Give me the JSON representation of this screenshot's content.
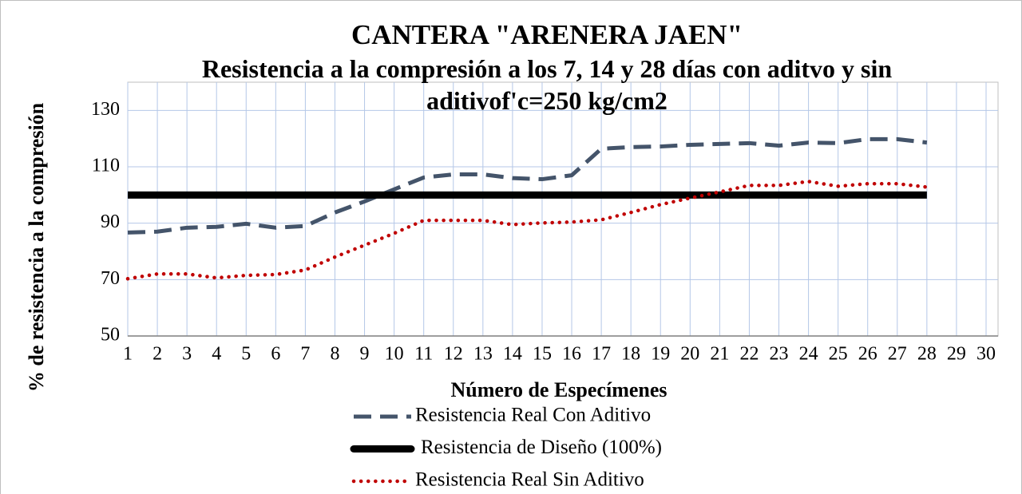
{
  "chart_data": {
    "type": "line",
    "title": "CANTERA  \"ARENERA JAEN\"",
    "subtitle": "Resistencia a la compresión a los 7, 14 y 28 días con aditvo y sin aditivof'c=250 kg/cm2",
    "x_label": "Número de Especímenes",
    "y_label": "% de resistencia a la compresión",
    "x": [
      1,
      2,
      3,
      4,
      5,
      6,
      7,
      8,
      9,
      10,
      11,
      12,
      13,
      14,
      15,
      16,
      17,
      18,
      19,
      20,
      21,
      22,
      23,
      24,
      25,
      26,
      27,
      28
    ],
    "xlim": [
      1,
      30
    ],
    "xticks": [
      1,
      2,
      3,
      4,
      5,
      6,
      7,
      8,
      9,
      10,
      11,
      12,
      13,
      14,
      15,
      16,
      17,
      18,
      19,
      20,
      21,
      22,
      23,
      24,
      25,
      26,
      27,
      28,
      29,
      30
    ],
    "ylim": [
      50,
      140
    ],
    "yticks": [
      50,
      70,
      90,
      110,
      130
    ],
    "grid": true,
    "series": [
      {
        "name": "Resistencia Real Con Aditivo",
        "color": "#44546a",
        "dash": "dashed",
        "values": [
          86.7,
          87,
          88.4,
          88.7,
          89.8,
          88.4,
          89,
          93.8,
          97.7,
          102,
          106.2,
          107.3,
          107.3,
          106,
          105.6,
          107,
          116.4,
          117,
          117.2,
          117.8,
          118.1,
          118.4,
          117.5,
          118.6,
          118.4,
          119.8,
          119.8,
          118.6
        ]
      },
      {
        "name": "Resistencia de Diseño (100%)",
        "color": "#000000",
        "dash": "solid",
        "values": [
          100,
          100,
          100,
          100,
          100,
          100,
          100,
          100,
          100,
          100,
          100,
          100,
          100,
          100,
          100,
          100,
          100,
          100,
          100,
          100,
          100,
          100,
          100,
          100,
          100,
          100,
          100,
          100
        ]
      },
      {
        "name": "Resistencia Real Sin Aditivo",
        "color": "#c00000",
        "dash": "dotted",
        "values": [
          70.3,
          72,
          72,
          70.6,
          71.5,
          71.8,
          73.4,
          78,
          82.2,
          86.4,
          91,
          91,
          91,
          89.5,
          90.1,
          90.4,
          91.2,
          93.8,
          96.6,
          98.9,
          101.1,
          103.4,
          103.4,
          104.8,
          103.1,
          104,
          104,
          102.8
        ]
      }
    ]
  }
}
